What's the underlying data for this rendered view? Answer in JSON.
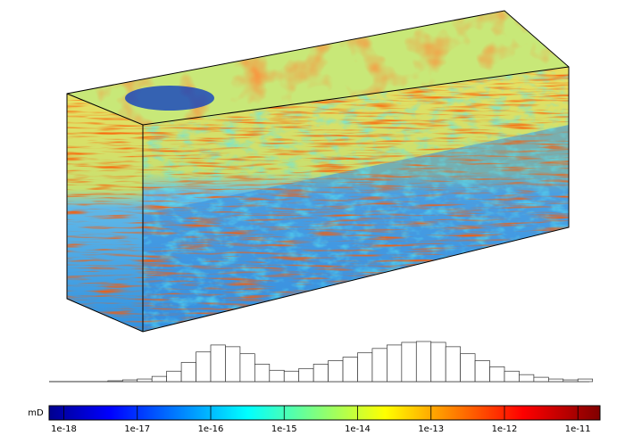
{
  "chart_data": {
    "type": "histogram",
    "xlabel": "mD",
    "xscale": "log",
    "xlim": [
      6.3e-19,
      2e-11
    ],
    "xticks": [
      1e-18,
      1e-17,
      1e-16,
      1e-15,
      1e-14,
      1e-13,
      1e-12,
      1e-11
    ],
    "bins": [
      3.981e-18,
      6.31e-18,
      1e-17,
      1.585e-17,
      2.512e-17,
      3.981e-17,
      6.31e-17,
      1e-16,
      1.585e-16,
      2.512e-16,
      3.981e-16,
      6.31e-16,
      1e-15,
      1.585e-15,
      2.512e-15,
      3.981e-15,
      6.31e-15,
      1e-14,
      1.585e-14,
      2.512e-14,
      3.981e-14,
      6.31e-14,
      1e-13,
      1.585e-13,
      2.512e-13,
      3.981e-13,
      6.31e-13,
      1e-12,
      1.585e-12,
      2.512e-12,
      3.981e-12,
      6.31e-12,
      1e-11,
      1.585e-11
    ],
    "counts": [
      1,
      2,
      3,
      6,
      12,
      22,
      34,
      42,
      40,
      32,
      20,
      13,
      12,
      15,
      20,
      24,
      28,
      33,
      38,
      42,
      45,
      46,
      45,
      40,
      32,
      24,
      17,
      12,
      8,
      5,
      3,
      2,
      3
    ],
    "color": "#ffffff",
    "edgecolor": "#333333"
  }
}
